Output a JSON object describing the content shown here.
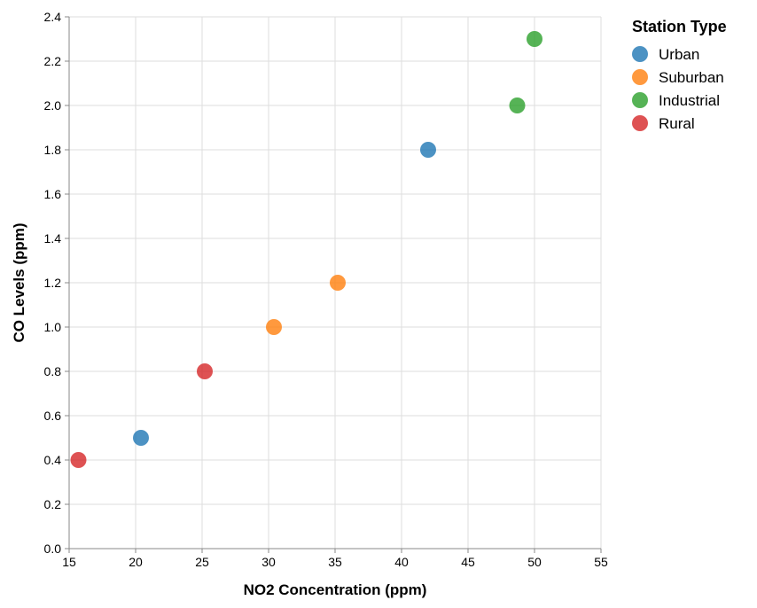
{
  "chart_data": {
    "type": "scatter",
    "title": "",
    "xlabel": "NO2 Concentration (ppm)",
    "ylabel": "CO Levels (ppm)",
    "xlim": [
      15,
      55
    ],
    "ylim": [
      0,
      2.4
    ],
    "xticks": [
      15,
      20,
      25,
      30,
      35,
      40,
      45,
      50,
      55
    ],
    "yticks": [
      0.0,
      0.2,
      0.4,
      0.6,
      0.8,
      1.0,
      1.2,
      1.4,
      1.6,
      1.8,
      2.0,
      2.2,
      2.4
    ],
    "grid": true,
    "legend": {
      "title": "Station Type",
      "position": "right"
    },
    "series": [
      {
        "name": "Urban",
        "color": "#1f77b4",
        "points": [
          {
            "x": 20.4,
            "y": 0.5
          },
          {
            "x": 42.0,
            "y": 1.8
          }
        ]
      },
      {
        "name": "Suburban",
        "color": "#ff7f0e",
        "points": [
          {
            "x": 30.4,
            "y": 1.0
          },
          {
            "x": 35.2,
            "y": 1.2
          }
        ]
      },
      {
        "name": "Industrial",
        "color": "#2ca02c",
        "points": [
          {
            "x": 48.7,
            "y": 2.0
          },
          {
            "x": 50.0,
            "y": 2.3
          }
        ]
      },
      {
        "name": "Rural",
        "color": "#d62728",
        "points": [
          {
            "x": 15.7,
            "y": 0.4
          },
          {
            "x": 25.2,
            "y": 0.8
          }
        ]
      }
    ]
  }
}
